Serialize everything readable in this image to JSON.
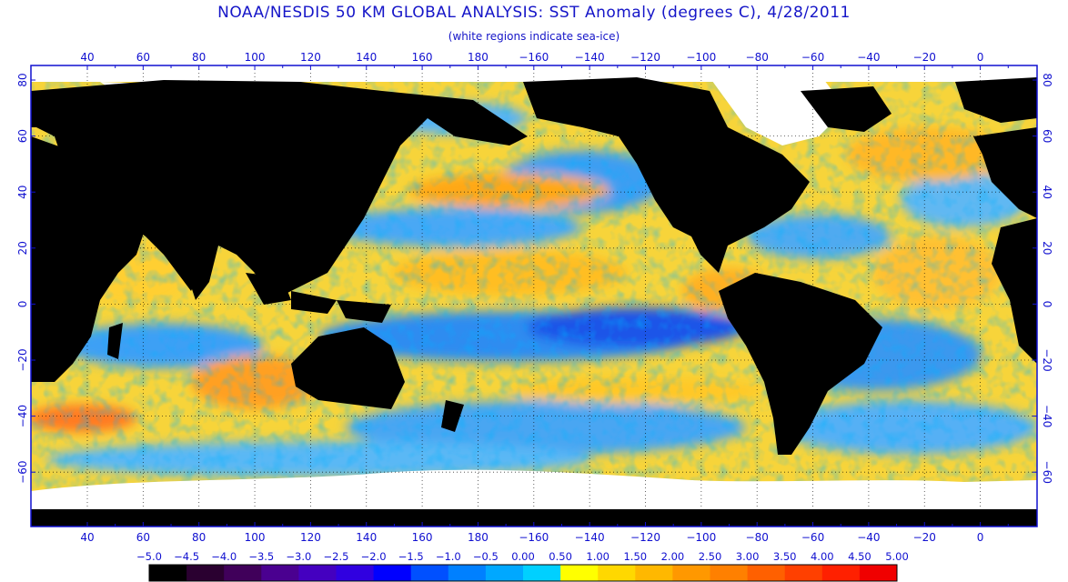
{
  "title": "NOAA/NESDIS 50 KM GLOBAL ANALYSIS: SST Anomaly (degrees C), 4/28/2011",
  "subtitle": "(white regions indicate sea-ice)",
  "lon_labels": [
    "40",
    "60",
    "80",
    "100",
    "120",
    "140",
    "160",
    "180",
    "−160",
    "−140",
    "−120",
    "−100",
    "−80",
    "−60",
    "−40",
    "−20",
    "0"
  ],
  "lat_labels": [
    "80",
    "60",
    "40",
    "20",
    "0",
    "−20",
    "−40",
    "−60"
  ],
  "colorbar": {
    "labels": [
      "−5.0",
      "−4.5",
      "−4.0",
      "−3.5",
      "−3.0",
      "−2.5",
      "−2.0",
      "−1.5",
      "−1.0",
      "−0.5",
      "0.00",
      "0.50",
      "1.00",
      "1.50",
      "2.00",
      "2.50",
      "3.00",
      "3.50",
      "4.00",
      "4.50",
      "5.00"
    ],
    "colors": [
      "#000000",
      "#2a0030",
      "#40005a",
      "#4a0090",
      "#4400c0",
      "#3000e0",
      "#0000ff",
      "#0050ff",
      "#0080ff",
      "#00a8ff",
      "#00d0ff",
      "#ffff00",
      "#ffd800",
      "#ffb800",
      "#ff9800",
      "#ff8000",
      "#ff6000",
      "#ff4000",
      "#ff2000",
      "#f00000"
    ]
  },
  "colors": {
    "land": "#000000",
    "ice": "#ffffff",
    "frame": "#1010d0",
    "grid": "#000000"
  }
}
